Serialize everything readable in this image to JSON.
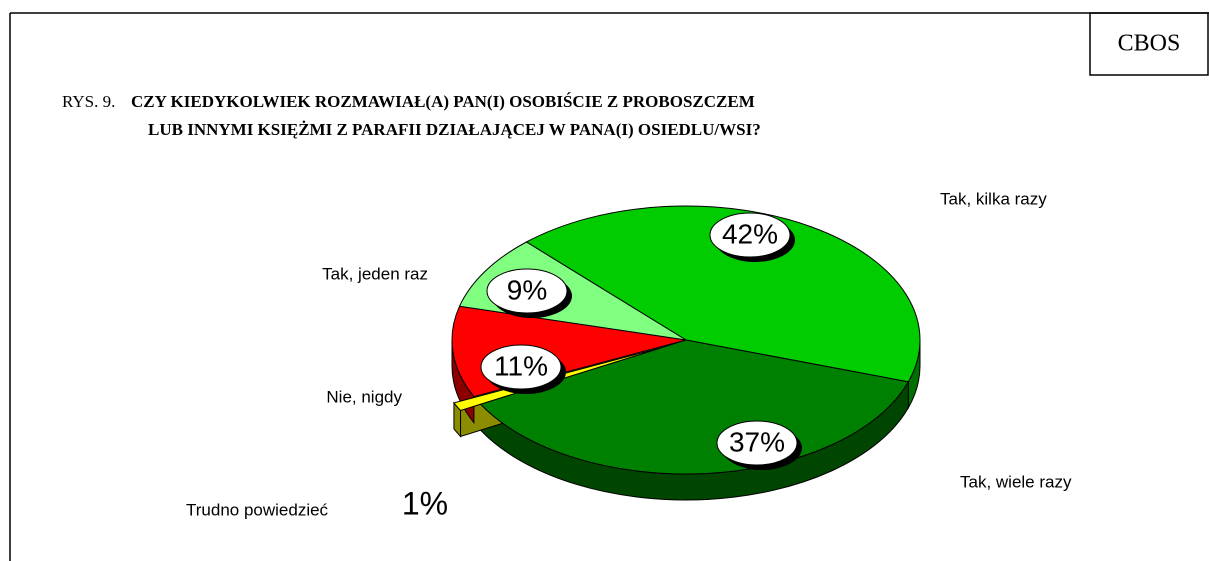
{
  "chart_data": {
    "type": "pie",
    "source": "CBOS",
    "title_number": "RYS. 9.",
    "title_lines": [
      "CZY KIEDYKOLWIEK ROZMAWIAŁ(A) PAN(I) OSOBIŚCIE Z PROBOSZCZEM",
      "LUB  INNYMI KSIĘŻMI Z PARAFII DZIAŁAJĄCEJ W PANA(I) OSIEDLU/WSI?"
    ],
    "categories": [
      "Tak, kilka razy",
      "Tak, wiele razy",
      "Trudno powiedzieć",
      "Nie, nigdy",
      "Tak, jeden raz"
    ],
    "values": [
      42,
      37,
      1,
      11,
      9
    ],
    "value_labels": [
      "42%",
      "37%",
      "1%",
      "11%",
      "9%"
    ],
    "colors": [
      "#00cc00",
      "#008000",
      "#ffff00",
      "#ff0000",
      "#80ff80"
    ]
  }
}
